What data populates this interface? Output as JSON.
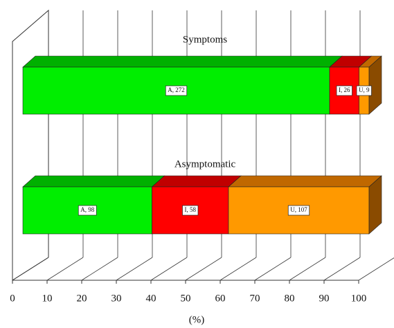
{
  "chart_data": {
    "type": "bar",
    "orientation": "horizontal",
    "categories": [
      "Symptoms",
      "Asymptomatic"
    ],
    "series": [
      {
        "color": "#00ee00",
        "values": [
          88.6,
          37.3
        ],
        "labels": [
          "A, 272",
          "A, 98"
        ]
      },
      {
        "color": "#ff0000",
        "values": [
          8.5,
          22.1
        ],
        "labels": [
          "I, 26",
          "I, 58"
        ]
      },
      {
        "color": "#ff9900",
        "values": [
          2.9,
          40.6
        ],
        "labels": [
          "U, 9",
          "U, 107"
        ]
      }
    ],
    "xlim": [
      0,
      100
    ],
    "xticks": [
      0,
      10,
      20,
      30,
      40,
      50,
      60,
      70,
      80,
      90,
      100
    ],
    "xlabel": "(%)",
    "grid": true
  }
}
